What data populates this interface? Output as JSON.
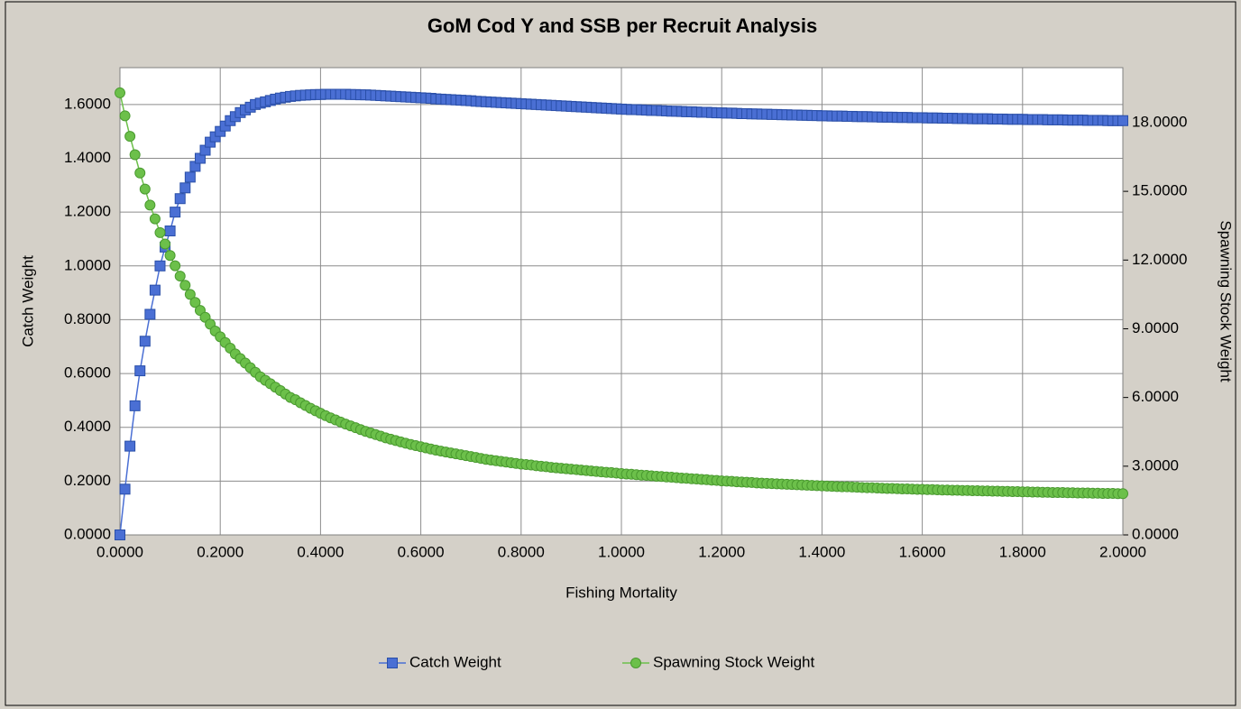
{
  "chart_data": {
    "type": "line",
    "title": "GoM Cod Y and SSB per Recruit Analysis",
    "x_label": "Fishing Mortality",
    "y_label": "Catch Weight",
    "y2_label": "Spawning Stock Weight",
    "grid": true,
    "legend": "bottom",
    "x": [
      0,
      0.01,
      0.02,
      0.03,
      0.04,
      0.05,
      0.06,
      0.07,
      0.08,
      0.09,
      0.1,
      0.11,
      0.12,
      0.13,
      0.14,
      0.15,
      0.16,
      0.17,
      0.18,
      0.19,
      0.2,
      0.21,
      0.22,
      0.23,
      0.24,
      0.25,
      0.26,
      0.27,
      0.28,
      0.29,
      0.3,
      0.31,
      0.32,
      0.33,
      0.34,
      0.35,
      0.36,
      0.37,
      0.38,
      0.39,
      0.4,
      0.41,
      0.42,
      0.43,
      0.44,
      0.45,
      0.46,
      0.47,
      0.48,
      0.49,
      0.5,
      0.51,
      0.52,
      0.53,
      0.54,
      0.55,
      0.56,
      0.57,
      0.58,
      0.59,
      0.6,
      0.61,
      0.62,
      0.63,
      0.64,
      0.65,
      0.66,
      0.67,
      0.68,
      0.69,
      0.7,
      0.71,
      0.72,
      0.73,
      0.74,
      0.75,
      0.76,
      0.77,
      0.78,
      0.79,
      0.8,
      0.81,
      0.82,
      0.83,
      0.84,
      0.85,
      0.86,
      0.87,
      0.88,
      0.89,
      0.9,
      0.91,
      0.92,
      0.93,
      0.94,
      0.95,
      0.96,
      0.97,
      0.98,
      0.99,
      1,
      1.01,
      1.02,
      1.03,
      1.04,
      1.05,
      1.06,
      1.07,
      1.08,
      1.09,
      1.1,
      1.11,
      1.12,
      1.13,
      1.14,
      1.15,
      1.16,
      1.17,
      1.18,
      1.19,
      1.2,
      1.21,
      1.22,
      1.23,
      1.24,
      1.25,
      1.26,
      1.27,
      1.28,
      1.29,
      1.3,
      1.31,
      1.32,
      1.33,
      1.34,
      1.35,
      1.36,
      1.37,
      1.38,
      1.39,
      1.4,
      1.41,
      1.42,
      1.43,
      1.44,
      1.45,
      1.46,
      1.47,
      1.48,
      1.49,
      1.5,
      1.51,
      1.52,
      1.53,
      1.54,
      1.55,
      1.56,
      1.57,
      1.58,
      1.59,
      1.6,
      1.61,
      1.62,
      1.63,
      1.64,
      1.65,
      1.66,
      1.67,
      1.68,
      1.69,
      1.7,
      1.71,
      1.72,
      1.73,
      1.74,
      1.75,
      1.76,
      1.77,
      1.78,
      1.79,
      1.8,
      1.81,
      1.82,
      1.83,
      1.84,
      1.85,
      1.86,
      1.87,
      1.88,
      1.89,
      1.9,
      1.91,
      1.92,
      1.93,
      1.94,
      1.95,
      1.96,
      1.97,
      1.98,
      1.99,
      2
    ],
    "series": [
      {
        "name": "Catch Weight",
        "color": "#4a6fd4",
        "marker": "square",
        "values": [
          0,
          0.17,
          0.33,
          0.48,
          0.61,
          0.72,
          0.82,
          0.91,
          1.0,
          1.07,
          1.13,
          1.2,
          1.25,
          1.29,
          1.33,
          1.37,
          1.4,
          1.43,
          1.46,
          1.48,
          1.5,
          1.52,
          1.54,
          1.555,
          1.57,
          1.58,
          1.59,
          1.6,
          1.605,
          1.61,
          1.615,
          1.62,
          1.624,
          1.627,
          1.63,
          1.632,
          1.634,
          1.635,
          1.636,
          1.637,
          1.637,
          1.638,
          1.638,
          1.638,
          1.638,
          1.638,
          1.637,
          1.637,
          1.636,
          1.636,
          1.635,
          1.634,
          1.633,
          1.632,
          1.631,
          1.63,
          1.629,
          1.628,
          1.627,
          1.626,
          1.625,
          1.624,
          1.623,
          1.621,
          1.62,
          1.619,
          1.618,
          1.617,
          1.616,
          1.615,
          1.614,
          1.612,
          1.611,
          1.61,
          1.609,
          1.608,
          1.607,
          1.606,
          1.605,
          1.604,
          1.603,
          1.602,
          1.601,
          1.6,
          1.599,
          1.598,
          1.597,
          1.596,
          1.595,
          1.594,
          1.593,
          1.592,
          1.591,
          1.59,
          1.589,
          1.588,
          1.587,
          1.586,
          1.585,
          1.584,
          1.583,
          1.582,
          1.581,
          1.581,
          1.58,
          1.579,
          1.578,
          1.578,
          1.577,
          1.576,
          1.575,
          1.575,
          1.574,
          1.573,
          1.573,
          1.572,
          1.571,
          1.571,
          1.57,
          1.569,
          1.569,
          1.568,
          1.568,
          1.567,
          1.566,
          1.566,
          1.565,
          1.565,
          1.564,
          1.564,
          1.563,
          1.563,
          1.562,
          1.562,
          1.561,
          1.561,
          1.56,
          1.56,
          1.559,
          1.559,
          1.558,
          1.558,
          1.557,
          1.557,
          1.557,
          1.556,
          1.556,
          1.555,
          1.555,
          1.555,
          1.554,
          1.554,
          1.553,
          1.553,
          1.553,
          1.552,
          1.552,
          1.552,
          1.551,
          1.551,
          1.551,
          1.55,
          1.55,
          1.55,
          1.549,
          1.549,
          1.549,
          1.548,
          1.548,
          1.548,
          1.547,
          1.547,
          1.547,
          1.547,
          1.546,
          1.546,
          1.546,
          1.545,
          1.545,
          1.545,
          1.545,
          1.544,
          1.544,
          1.544,
          1.544,
          1.543,
          1.543,
          1.543,
          1.543,
          1.542,
          1.542,
          1.542,
          1.542,
          1.541,
          1.541,
          1.541,
          1.541,
          1.54,
          1.54,
          1.54,
          1.54
        ]
      },
      {
        "name": "Spawning Stock Weight",
        "color": "#6cc04a",
        "marker": "circle",
        "axis": "y2",
        "values": [
          19.3,
          18.3,
          17.4,
          16.6,
          15.8,
          15.1,
          14.4,
          13.8,
          13.2,
          12.7,
          12.2,
          11.75,
          11.3,
          10.9,
          10.5,
          10.15,
          9.8,
          9.5,
          9.2,
          8.9,
          8.65,
          8.4,
          8.15,
          7.9,
          7.7,
          7.5,
          7.3,
          7.1,
          6.9,
          6.75,
          6.6,
          6.45,
          6.3,
          6.15,
          6.0,
          5.9,
          5.77,
          5.65,
          5.53,
          5.42,
          5.31,
          5.21,
          5.11,
          5.02,
          4.93,
          4.84,
          4.76,
          4.68,
          4.6,
          4.52,
          4.45,
          4.38,
          4.31,
          4.24,
          4.18,
          4.12,
          4.06,
          4.0,
          3.95,
          3.9,
          3.85,
          3.8,
          3.75,
          3.7,
          3.66,
          3.62,
          3.58,
          3.54,
          3.5,
          3.46,
          3.42,
          3.38,
          3.34,
          3.3,
          3.27,
          3.24,
          3.21,
          3.18,
          3.15,
          3.12,
          3.09,
          3.07,
          3.05,
          3.02,
          3.0,
          2.98,
          2.95,
          2.93,
          2.91,
          2.89,
          2.87,
          2.85,
          2.83,
          2.81,
          2.79,
          2.77,
          2.75,
          2.73,
          2.72,
          2.7,
          2.68,
          2.66,
          2.65,
          2.63,
          2.61,
          2.6,
          2.58,
          2.56,
          2.55,
          2.53,
          2.52,
          2.5,
          2.48,
          2.47,
          2.45,
          2.44,
          2.42,
          2.41,
          2.39,
          2.38,
          2.36,
          2.35,
          2.34,
          2.32,
          2.31,
          2.3,
          2.29,
          2.27,
          2.26,
          2.25,
          2.24,
          2.23,
          2.22,
          2.21,
          2.2,
          2.19,
          2.18,
          2.17,
          2.16,
          2.15,
          2.14,
          2.13,
          2.12,
          2.11,
          2.1,
          2.1,
          2.09,
          2.08,
          2.07,
          2.06,
          2.06,
          2.05,
          2.04,
          2.03,
          2.03,
          2.02,
          2.01,
          2.01,
          2.0,
          1.99,
          1.99,
          1.98,
          1.98,
          1.97,
          1.96,
          1.96,
          1.95,
          1.95,
          1.94,
          1.94,
          1.93,
          1.93,
          1.92,
          1.92,
          1.91,
          1.91,
          1.9,
          1.9,
          1.89,
          1.89,
          1.88,
          1.88,
          1.87,
          1.87,
          1.86,
          1.86,
          1.85,
          1.85,
          1.85,
          1.84,
          1.84,
          1.83,
          1.83,
          1.83,
          1.82,
          1.82,
          1.81,
          1.81,
          1.81,
          1.8,
          1.8
        ]
      }
    ],
    "xlim": [
      0,
      2
    ],
    "xticks": [
      {
        "value": 0,
        "label": "0.0000"
      },
      {
        "value": 0.2,
        "label": "0.2000"
      },
      {
        "value": 0.4,
        "label": "0.4000"
      },
      {
        "value": 0.6,
        "label": "0.6000"
      },
      {
        "value": 0.8,
        "label": "0.8000"
      },
      {
        "value": 1,
        "label": "1.0000"
      },
      {
        "value": 1.2,
        "label": "1.2000"
      },
      {
        "value": 1.4,
        "label": "1.4000"
      },
      {
        "value": 1.6,
        "label": "1.6000"
      },
      {
        "value": 1.8,
        "label": "1.8000"
      },
      {
        "value": 2,
        "label": "2.0000"
      }
    ],
    "ylim": [
      0,
      1.737
    ],
    "yticks": [
      {
        "value": 0,
        "label": "0.0000"
      },
      {
        "value": 0.2,
        "label": "0.2000"
      },
      {
        "value": 0.4,
        "label": "0.4000"
      },
      {
        "value": 0.6,
        "label": "0.6000"
      },
      {
        "value": 0.8,
        "label": "0.8000"
      },
      {
        "value": 1,
        "label": "1.0000"
      },
      {
        "value": 1.2,
        "label": "1.2000"
      },
      {
        "value": 1.4,
        "label": "1.4000"
      },
      {
        "value": 1.6,
        "label": "1.6000"
      }
    ],
    "y2lim": [
      0,
      20.4
    ],
    "y2ticks": [
      {
        "value": 0,
        "label": "0.0000"
      },
      {
        "value": 3,
        "label": "3.0000"
      },
      {
        "value": 6,
        "label": "6.0000"
      },
      {
        "value": 9,
        "label": "9.0000"
      },
      {
        "value": 12,
        "label": "12.0000"
      },
      {
        "value": 15,
        "label": "15.0000"
      },
      {
        "value": 18,
        "label": "18.0000"
      }
    ]
  }
}
